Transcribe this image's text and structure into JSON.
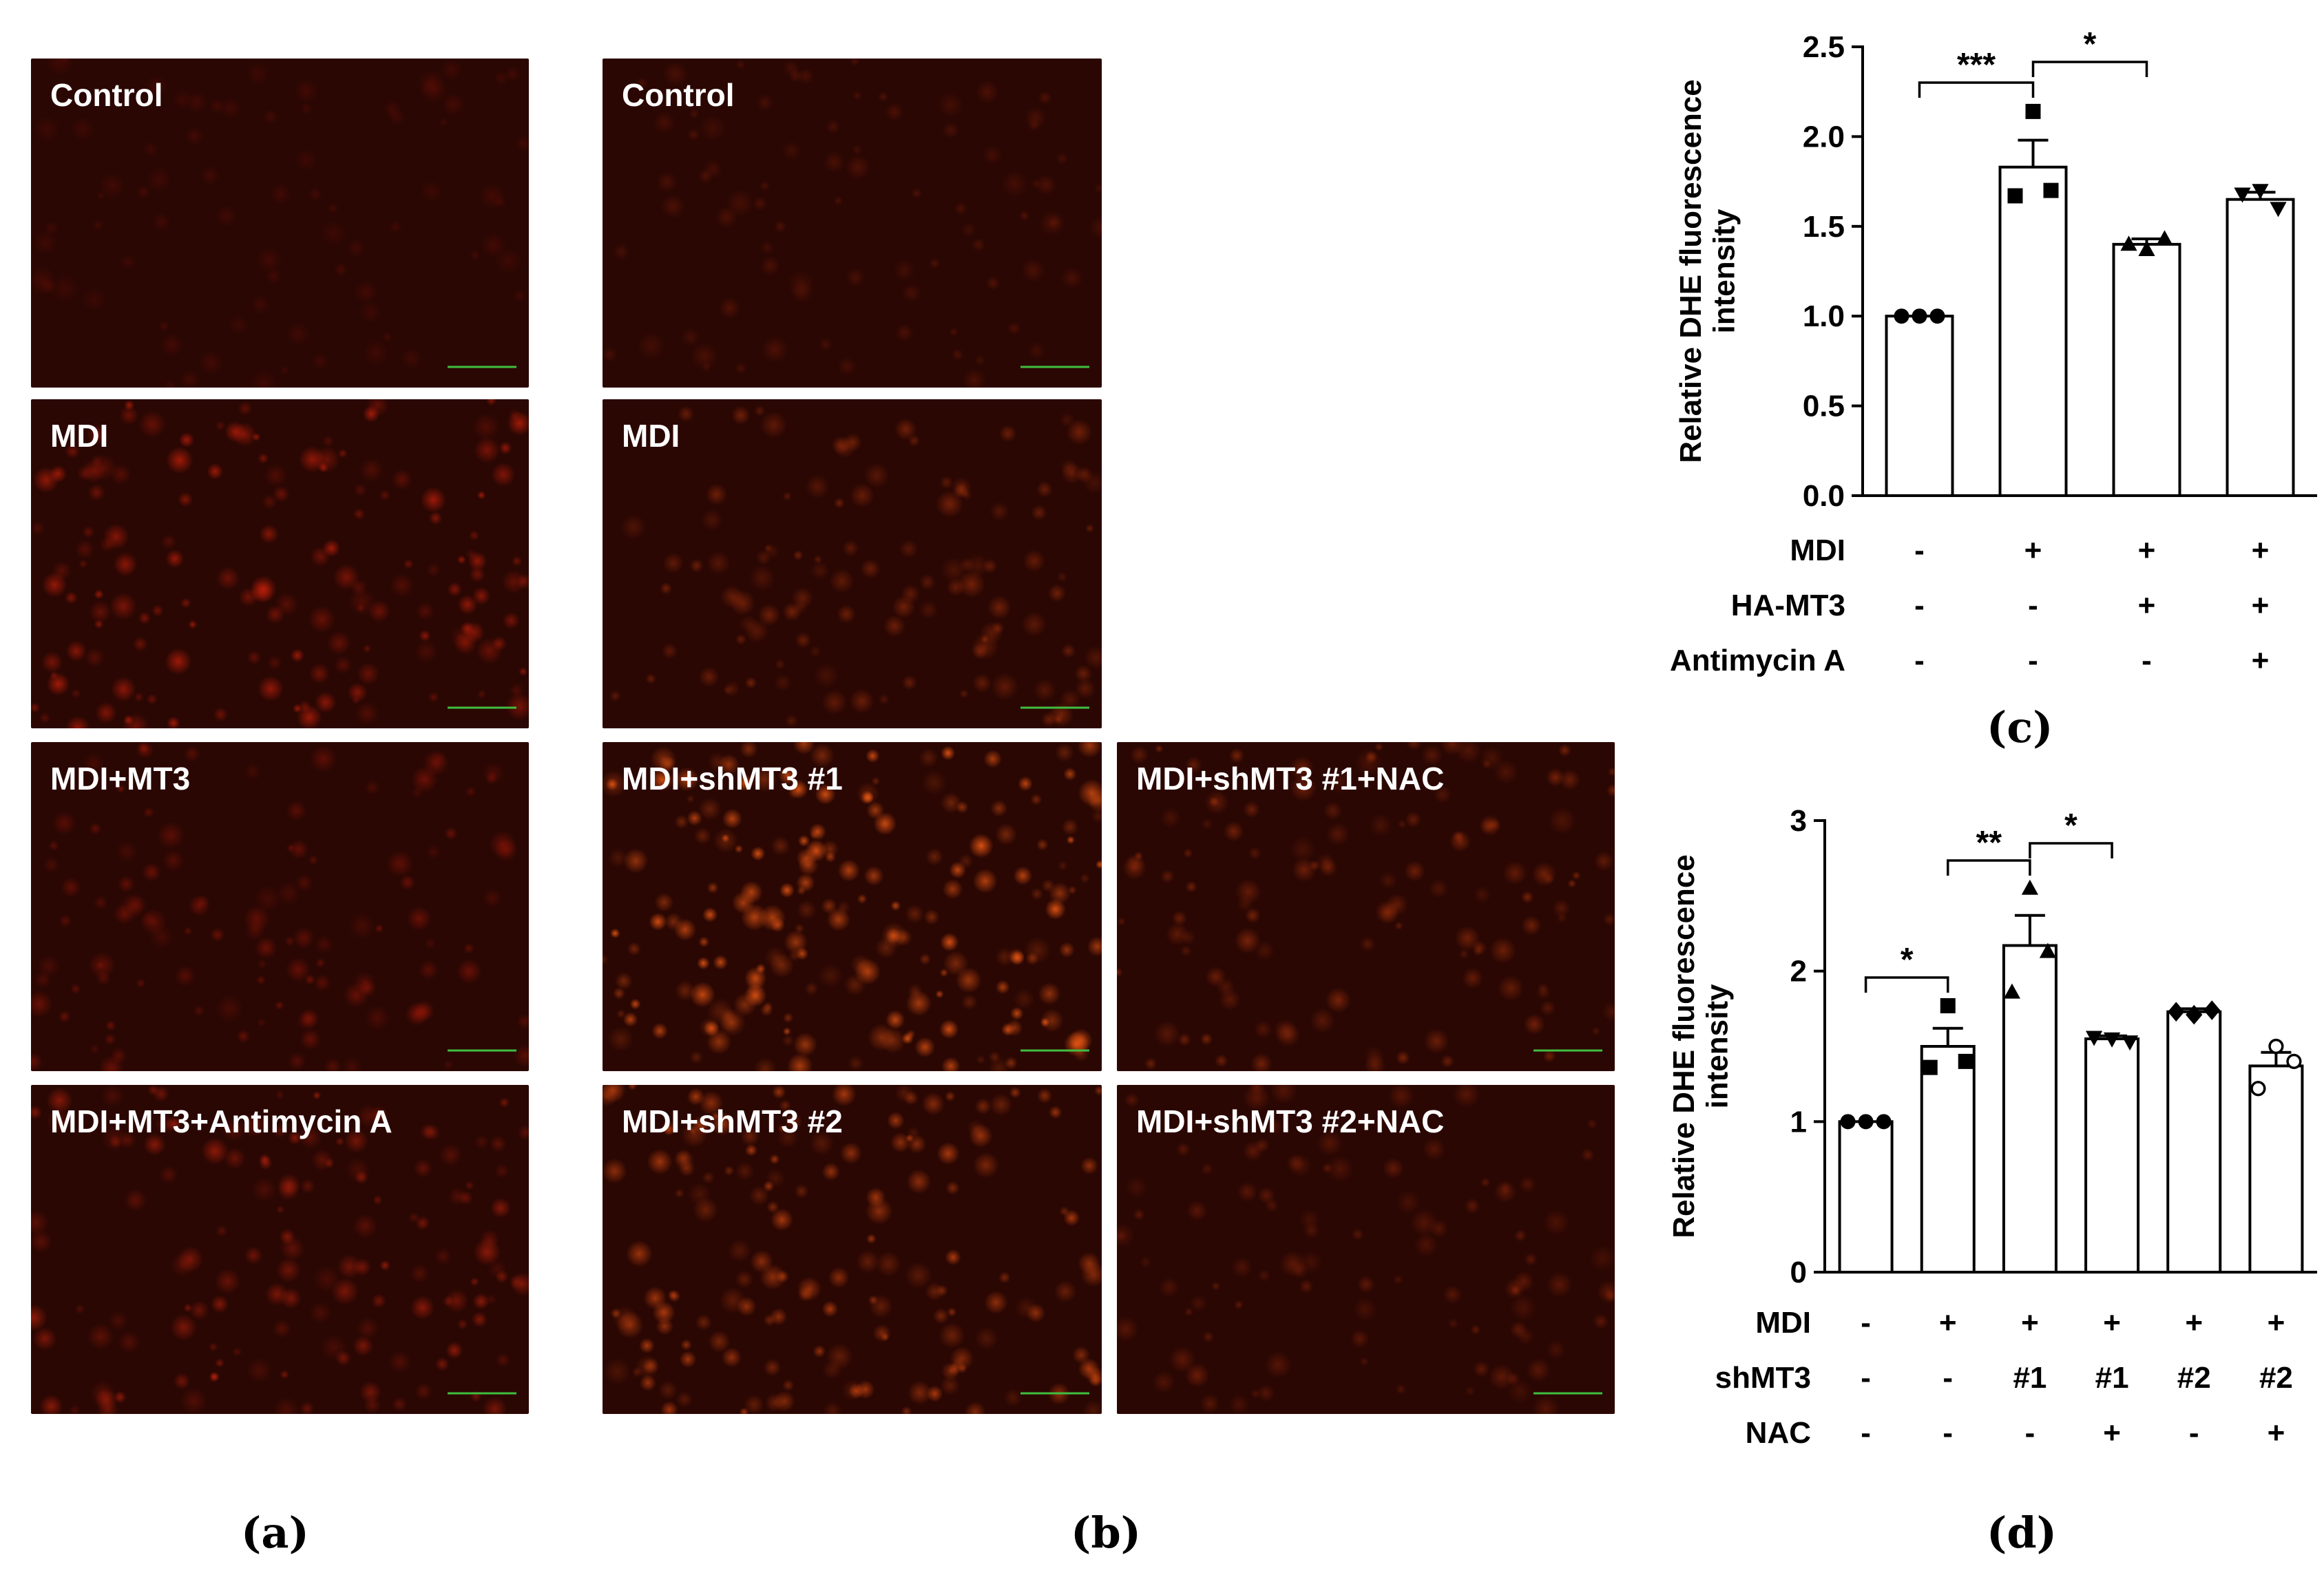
{
  "panels": {
    "a": "(a)",
    "b": "(b)",
    "c": "(c)",
    "d": "(d)"
  },
  "micrographs_a": [
    {
      "label": "Control",
      "brightness": 0.08,
      "tint": "#a01508"
    },
    {
      "label": "MDI",
      "brightness": 0.55,
      "tint": "#e8260c"
    },
    {
      "label": "MDI+MT3",
      "brightness": 0.3,
      "tint": "#c81e0a"
    },
    {
      "label": "MDI+MT3+Antimycin A",
      "brightness": 0.45,
      "tint": "#e22a0e"
    }
  ],
  "micrographs_b": [
    {
      "label": "Control",
      "brightness": 0.12,
      "tint": "#b8300c"
    },
    {
      "label": "MDI",
      "brightness": 0.3,
      "tint": "#d8450f"
    },
    {
      "label": "MDI+shMT3 #1",
      "brightness": 0.85,
      "tint": "#f05a14"
    },
    {
      "label": "MDI+shMT3 #1+NAC",
      "brightness": 0.35,
      "tint": "#d8450f"
    },
    {
      "label": "MDI+shMT3 #2",
      "brightness": 0.6,
      "tint": "#ea5212"
    },
    {
      "label": "MDI+shMT3 #2+NAC",
      "brightness": 0.22,
      "tint": "#c83a0e"
    }
  ],
  "colors": {
    "micro_bg": "#2b0703",
    "scale_bar": "#3fbf3f"
  },
  "chart_data": [
    {
      "type": "bar",
      "ylabel": "Relative DHE fluorescence intensity",
      "ylabel_lines": [
        "Relative DHE fluorescence",
        "intensity"
      ],
      "ylim": [
        0,
        2.5
      ],
      "yticks": [
        0.0,
        0.5,
        1.0,
        1.5,
        2.0,
        2.5
      ],
      "ytick_labels": [
        "0.0",
        "0.5",
        "1.0",
        "1.5",
        "2.0",
        "2.5"
      ],
      "values": [
        1.0,
        1.83,
        1.4,
        1.65
      ],
      "errors": [
        0.0,
        0.15,
        0.03,
        0.04
      ],
      "points": [
        [
          1.0,
          1.0,
          1.0
        ],
        [
          2.14,
          1.7,
          1.67
        ],
        [
          1.37,
          1.43,
          1.4
        ],
        [
          1.7,
          1.6,
          1.68
        ]
      ],
      "markers": [
        "circle",
        "square",
        "triangle-up",
        "triangle-down"
      ],
      "conditions": [
        {
          "label": "MDI",
          "values": [
            "-",
            "+",
            "+",
            "+"
          ]
        },
        {
          "label": "HA-MT3",
          "values": [
            "-",
            "-",
            "+",
            "+"
          ]
        },
        {
          "label": "Antimycin A",
          "values": [
            "-",
            "-",
            "-",
            "+"
          ]
        }
      ],
      "significance": [
        {
          "from": 0,
          "to": 1,
          "label": "***"
        },
        {
          "from": 1,
          "to": 2,
          "label": "*"
        }
      ]
    },
    {
      "type": "bar",
      "ylabel": "Relative DHE fluorescence intensity",
      "ylabel_lines": [
        "Relative DHE fluorescence",
        "intensity"
      ],
      "ylim": [
        0,
        3
      ],
      "yticks": [
        0,
        1,
        2,
        3
      ],
      "ytick_labels": [
        "0",
        "1",
        "2",
        "3"
      ],
      "values": [
        1.0,
        1.5,
        2.17,
        1.55,
        1.73,
        1.37
      ],
      "errors": [
        0.0,
        0.12,
        0.2,
        0.02,
        0.02,
        0.09
      ],
      "points": [
        [
          1.0,
          1.0,
          1.0
        ],
        [
          1.77,
          1.4,
          1.36
        ],
        [
          2.55,
          2.13,
          1.86
        ],
        [
          1.55,
          1.53,
          1.56
        ],
        [
          1.71,
          1.74,
          1.73
        ],
        [
          1.5,
          1.4,
          1.22
        ]
      ],
      "markers": [
        "circle",
        "square",
        "triangle-up",
        "triangle-down",
        "diamond",
        "open-circle"
      ],
      "conditions": [
        {
          "label": "MDI",
          "values": [
            "-",
            "+",
            "+",
            "+",
            "+",
            "+"
          ]
        },
        {
          "label": "shMT3",
          "values": [
            "-",
            "-",
            "#1",
            "#1",
            "#2",
            "#2"
          ]
        },
        {
          "label": "NAC",
          "values": [
            "-",
            "-",
            "-",
            "+",
            "-",
            "+"
          ]
        }
      ],
      "significance": [
        {
          "from": 0,
          "to": 1,
          "label": "*"
        },
        {
          "from": 1,
          "to": 2,
          "label": "**"
        },
        {
          "from": 2,
          "to": 3,
          "label": "*"
        }
      ]
    }
  ]
}
